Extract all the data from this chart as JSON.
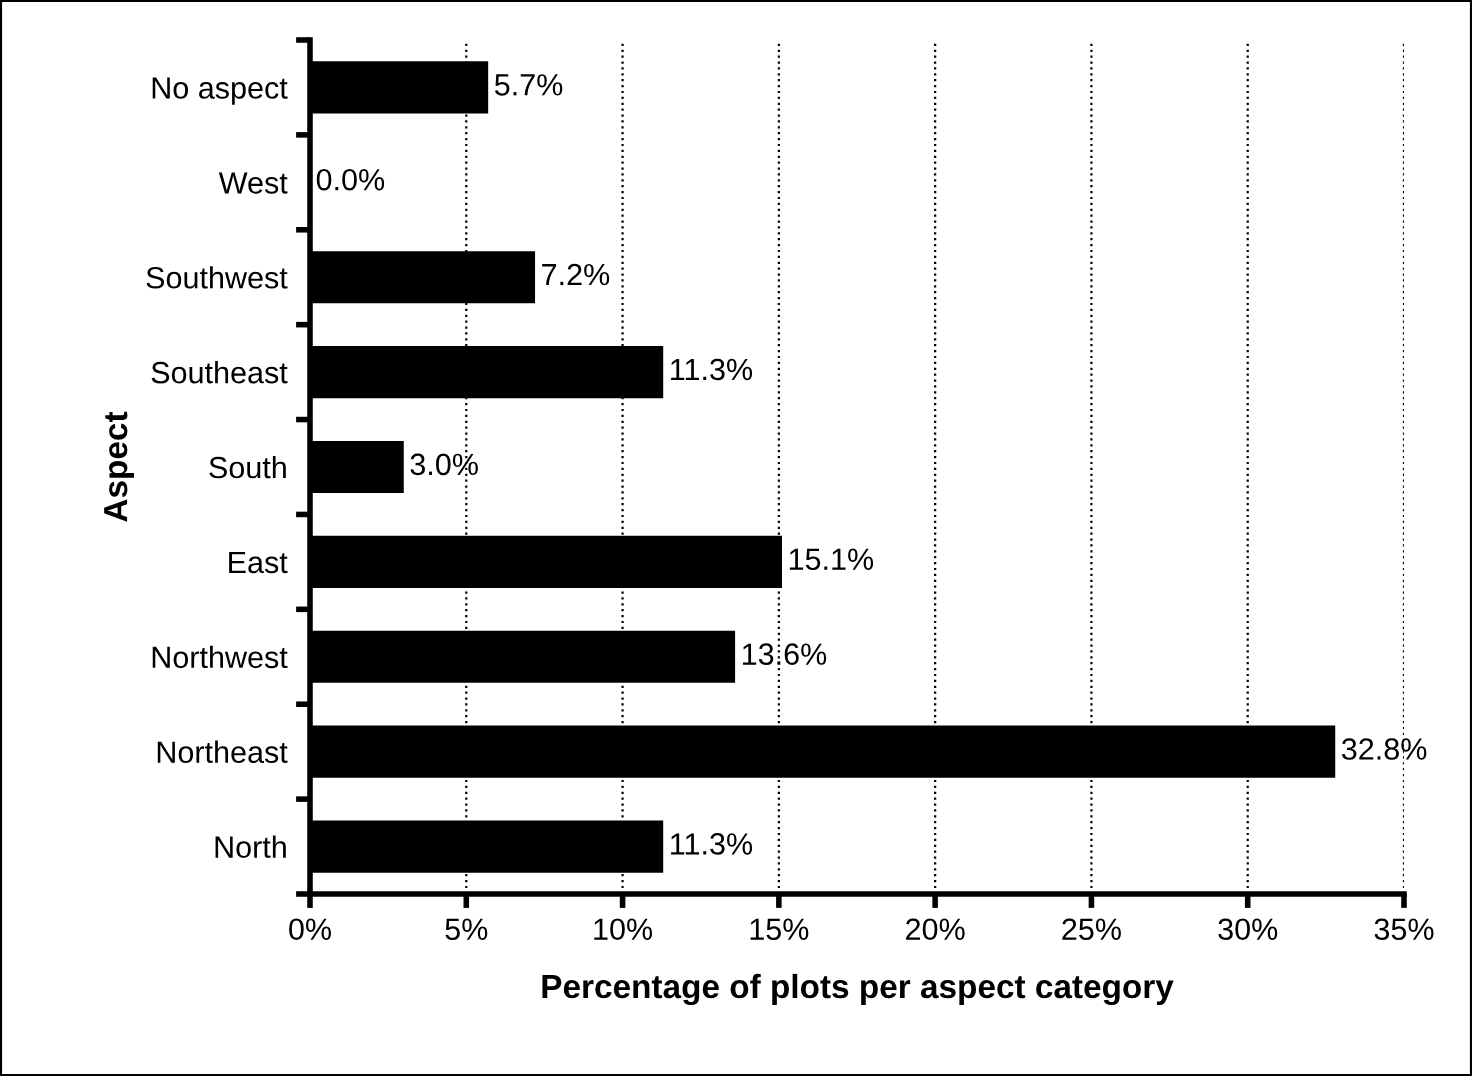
{
  "chart_data": {
    "type": "bar",
    "orientation": "horizontal",
    "xlabel": "Percentage of plots per aspect category",
    "ylabel": "Aspect",
    "categories": [
      "No aspect",
      "West",
      "Southwest",
      "Southeast",
      "South",
      "East",
      "Northwest",
      "Northeast",
      "North"
    ],
    "values": [
      5.7,
      0.0,
      7.2,
      11.3,
      3.0,
      15.1,
      13.6,
      32.8,
      11.3
    ],
    "value_labels": [
      "5.7%",
      "0.0%",
      "7.2%",
      "11.3%",
      "3.0%",
      "15.1%",
      "13.6%",
      "32.8%",
      "11.3%"
    ],
    "color": "#000000",
    "xlim": [
      0,
      35
    ],
    "xticks": [
      {
        "value": 0,
        "label": "0%"
      },
      {
        "value": 5,
        "label": "5%"
      },
      {
        "value": 10,
        "label": "10%"
      },
      {
        "value": 15,
        "label": "15%"
      },
      {
        "value": 20,
        "label": "20%"
      },
      {
        "value": 25,
        "label": "25%"
      },
      {
        "value": 30,
        "label": "30%"
      },
      {
        "value": 35,
        "label": "35%"
      }
    ],
    "grid": "x",
    "legend": false
  }
}
